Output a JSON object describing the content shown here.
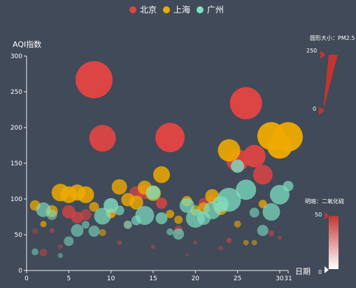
{
  "chart_data": {
    "type": "scatter",
    "xlabel": "日期",
    "ylabel": "AQI指数",
    "xlim": [
      0,
      31
    ],
    "ylim": [
      0,
      300
    ],
    "x_ticks": [
      0,
      5,
      10,
      15,
      20,
      25,
      30,
      31
    ],
    "y_ticks": [
      0,
      50,
      100,
      150,
      200,
      250,
      300
    ],
    "grid": false,
    "legend_position": "top-center",
    "visual_maps": {
      "size": {
        "label": "圆形大小：PM2.5",
        "min": 0,
        "max": 250,
        "min_label": "0",
        "max_label": "250",
        "color": "#c23531"
      },
      "opacity": {
        "label": "明暗：二氧化硫",
        "min": 0,
        "max": 50,
        "min_label": "0",
        "max_label": "50",
        "color": "#c23531"
      }
    },
    "series": [
      {
        "name": "北京",
        "color": "#dd4444",
        "points": [
          [
            1,
            55,
            9,
            0.35
          ],
          [
            2,
            25,
            11,
            0.45
          ],
          [
            3,
            56,
            7,
            0.5
          ],
          [
            4,
            33,
            7,
            0.4
          ],
          [
            5,
            82,
            19,
            0.75
          ],
          [
            6,
            74,
            17,
            0.7
          ],
          [
            7,
            78,
            16,
            0.6
          ],
          [
            8,
            267,
            53,
            1
          ],
          [
            9,
            185,
            38,
            0.95
          ],
          [
            10,
            80,
            14,
            0.7
          ],
          [
            11,
            39,
            7,
            0.45
          ],
          [
            12,
            64,
            10,
            0.6
          ],
          [
            13,
            108,
            20,
            0.7
          ],
          [
            14,
            110,
            21,
            0.7
          ],
          [
            15,
            33,
            6,
            0.45
          ],
          [
            16,
            94,
            16,
            0.8
          ],
          [
            17,
            186,
            42,
            1
          ],
          [
            18,
            57,
            12,
            0.55
          ],
          [
            19,
            22,
            5,
            0.35
          ],
          [
            20,
            39,
            6,
            0.45
          ],
          [
            21,
            94,
            15,
            0.7
          ],
          [
            22,
            99,
            14,
            0.7
          ],
          [
            23,
            31,
            7,
            0.4
          ],
          [
            24,
            42,
            8,
            0.55
          ],
          [
            25,
            154,
            32,
            0.9
          ],
          [
            26,
            234,
            46,
            1
          ],
          [
            27,
            160,
            32,
            0.95
          ],
          [
            28,
            134,
            28,
            0.85
          ],
          [
            29,
            52,
            8,
            0.55
          ],
          [
            30,
            46,
            6,
            0.45
          ]
        ]
      },
      {
        "name": "上海",
        "color": "#eeaa00",
        "points": [
          [
            1,
            91,
            15,
            0.75
          ],
          [
            2,
            65,
            9,
            0.7
          ],
          [
            3,
            83,
            17,
            0.75
          ],
          [
            4,
            109,
            25,
            0.85
          ],
          [
            5,
            106,
            24,
            0.85
          ],
          [
            6,
            109,
            23,
            0.85
          ],
          [
            7,
            106,
            24,
            0.85
          ],
          [
            8,
            89,
            14,
            0.75
          ],
          [
            9,
            53,
            10,
            0.55
          ],
          [
            10,
            80,
            14,
            0.75
          ],
          [
            11,
            117,
            22,
            0.8
          ],
          [
            12,
            99,
            19,
            0.8
          ],
          [
            13,
            95,
            20,
            0.8
          ],
          [
            14,
            116,
            20,
            0.8
          ],
          [
            15,
            108,
            22,
            0.8
          ],
          [
            16,
            134,
            24,
            0.85
          ],
          [
            17,
            79,
            12,
            0.75
          ],
          [
            18,
            71,
            12,
            0.7
          ],
          [
            19,
            97,
            15,
            0.75
          ],
          [
            20,
            84,
            15,
            0.7
          ],
          [
            21,
            87,
            17,
            0.75
          ],
          [
            22,
            104,
            20,
            0.8
          ],
          [
            23,
            87,
            19,
            0.8
          ],
          [
            24,
            168,
            32,
            0.9
          ],
          [
            25,
            65,
            10,
            0.6
          ],
          [
            26,
            39,
            8,
            0.5
          ],
          [
            27,
            39,
            8,
            0.5
          ],
          [
            28,
            93,
            12,
            0.75
          ],
          [
            29,
            188,
            40,
            0.95
          ],
          [
            30,
            174,
            36,
            0.95
          ],
          [
            31,
            187,
            42,
            0.95
          ]
        ]
      },
      {
        "name": "广州",
        "color": "#7ee0c3",
        "points": [
          [
            1,
            26,
            10,
            0.5
          ],
          [
            2,
            85,
            21,
            0.65
          ],
          [
            3,
            78,
            15,
            0.55
          ],
          [
            4,
            21,
            7,
            0.45
          ],
          [
            5,
            41,
            14,
            0.55
          ],
          [
            6,
            56,
            18,
            0.6
          ],
          [
            7,
            64,
            11,
            0.55
          ],
          [
            8,
            55,
            16,
            0.6
          ],
          [
            9,
            76,
            24,
            0.7
          ],
          [
            10,
            91,
            21,
            0.8
          ],
          [
            11,
            84,
            14,
            0.65
          ],
          [
            12,
            64,
            12,
            0.65
          ],
          [
            13,
            70,
            14,
            0.65
          ],
          [
            14,
            77,
            27,
            0.7
          ],
          [
            15,
            109,
            20,
            0.75
          ],
          [
            16,
            73,
            17,
            0.7
          ],
          [
            17,
            54,
            10,
            0.55
          ],
          [
            18,
            51,
            16,
            0.6
          ],
          [
            19,
            91,
            21,
            0.7
          ],
          [
            20,
            73,
            27,
            0.7
          ],
          [
            21,
            73,
            19,
            0.65
          ],
          [
            22,
            84,
            25,
            0.7
          ],
          [
            23,
            93,
            23,
            0.7
          ],
          [
            24,
            99,
            34,
            0.75
          ],
          [
            25,
            146,
            19,
            0.8
          ],
          [
            26,
            113,
            29,
            0.75
          ],
          [
            27,
            81,
            14,
            0.6
          ],
          [
            28,
            56,
            16,
            0.6
          ],
          [
            29,
            82,
            25,
            0.7
          ],
          [
            30,
            106,
            28,
            0.75
          ],
          [
            31,
            118,
            15,
            0.7
          ]
        ]
      }
    ]
  }
}
